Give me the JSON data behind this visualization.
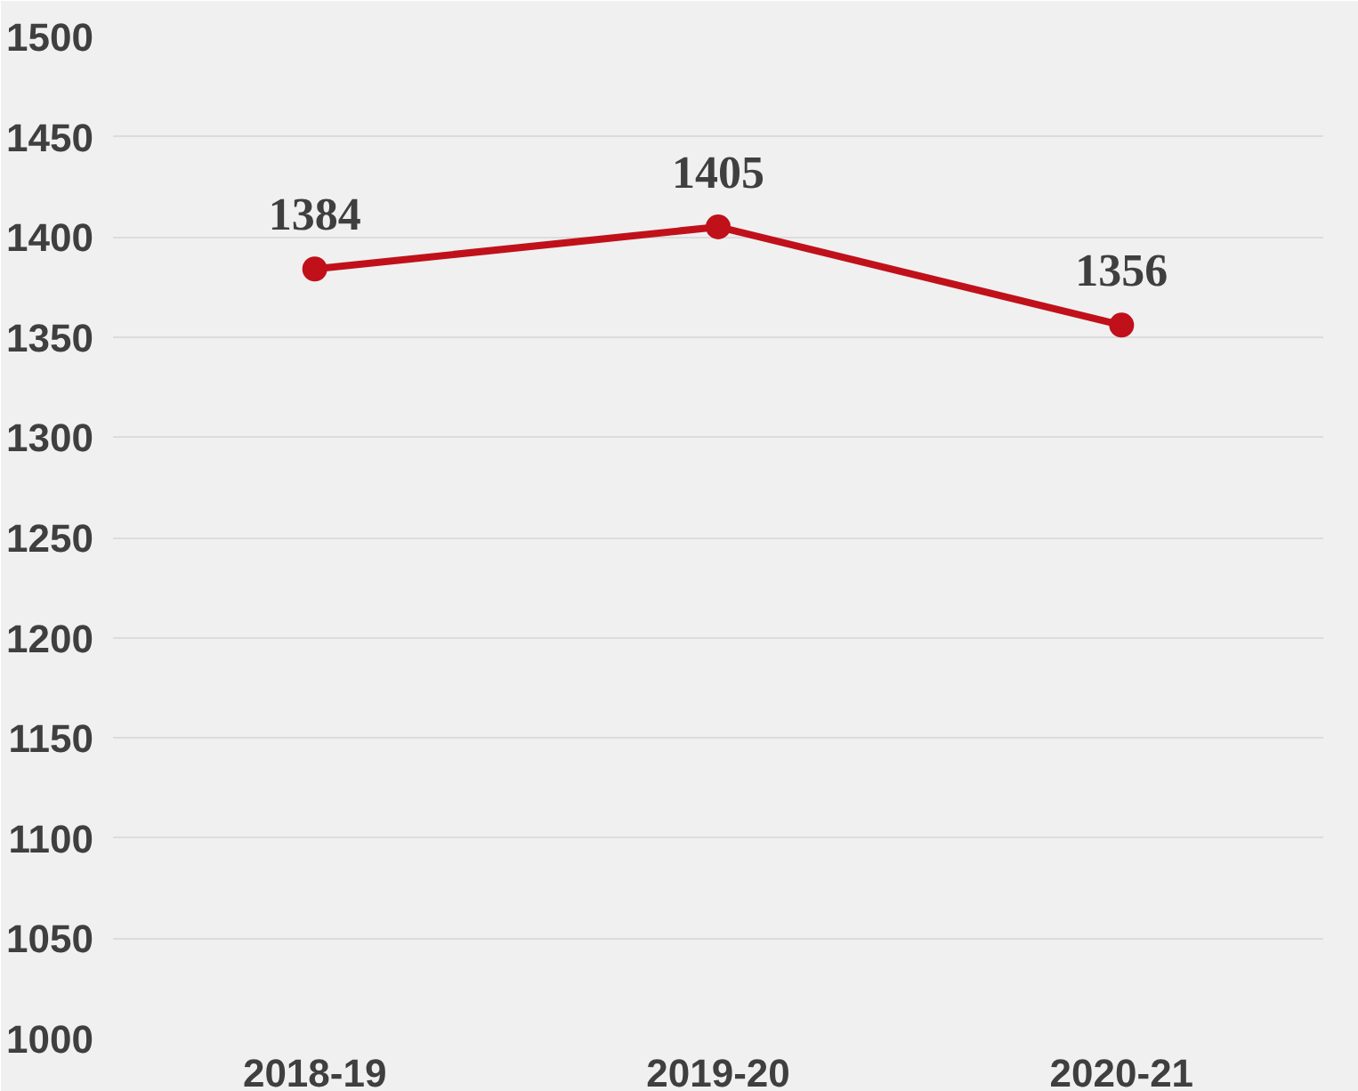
{
  "chart_data": {
    "type": "line",
    "categories": [
      "2018-19",
      "2019-20",
      "2020-21"
    ],
    "series": [
      {
        "color": "#c0111a",
        "values": [
          1384,
          1405,
          1356
        ]
      }
    ],
    "ylim": [
      1000,
      1500
    ],
    "yticks": [
      1000,
      1050,
      1100,
      1150,
      1200,
      1250,
      1300,
      1350,
      1400,
      1450,
      1500
    ],
    "grid": "y",
    "data_labels": true,
    "marker": "circle",
    "line_style": "solid"
  }
}
